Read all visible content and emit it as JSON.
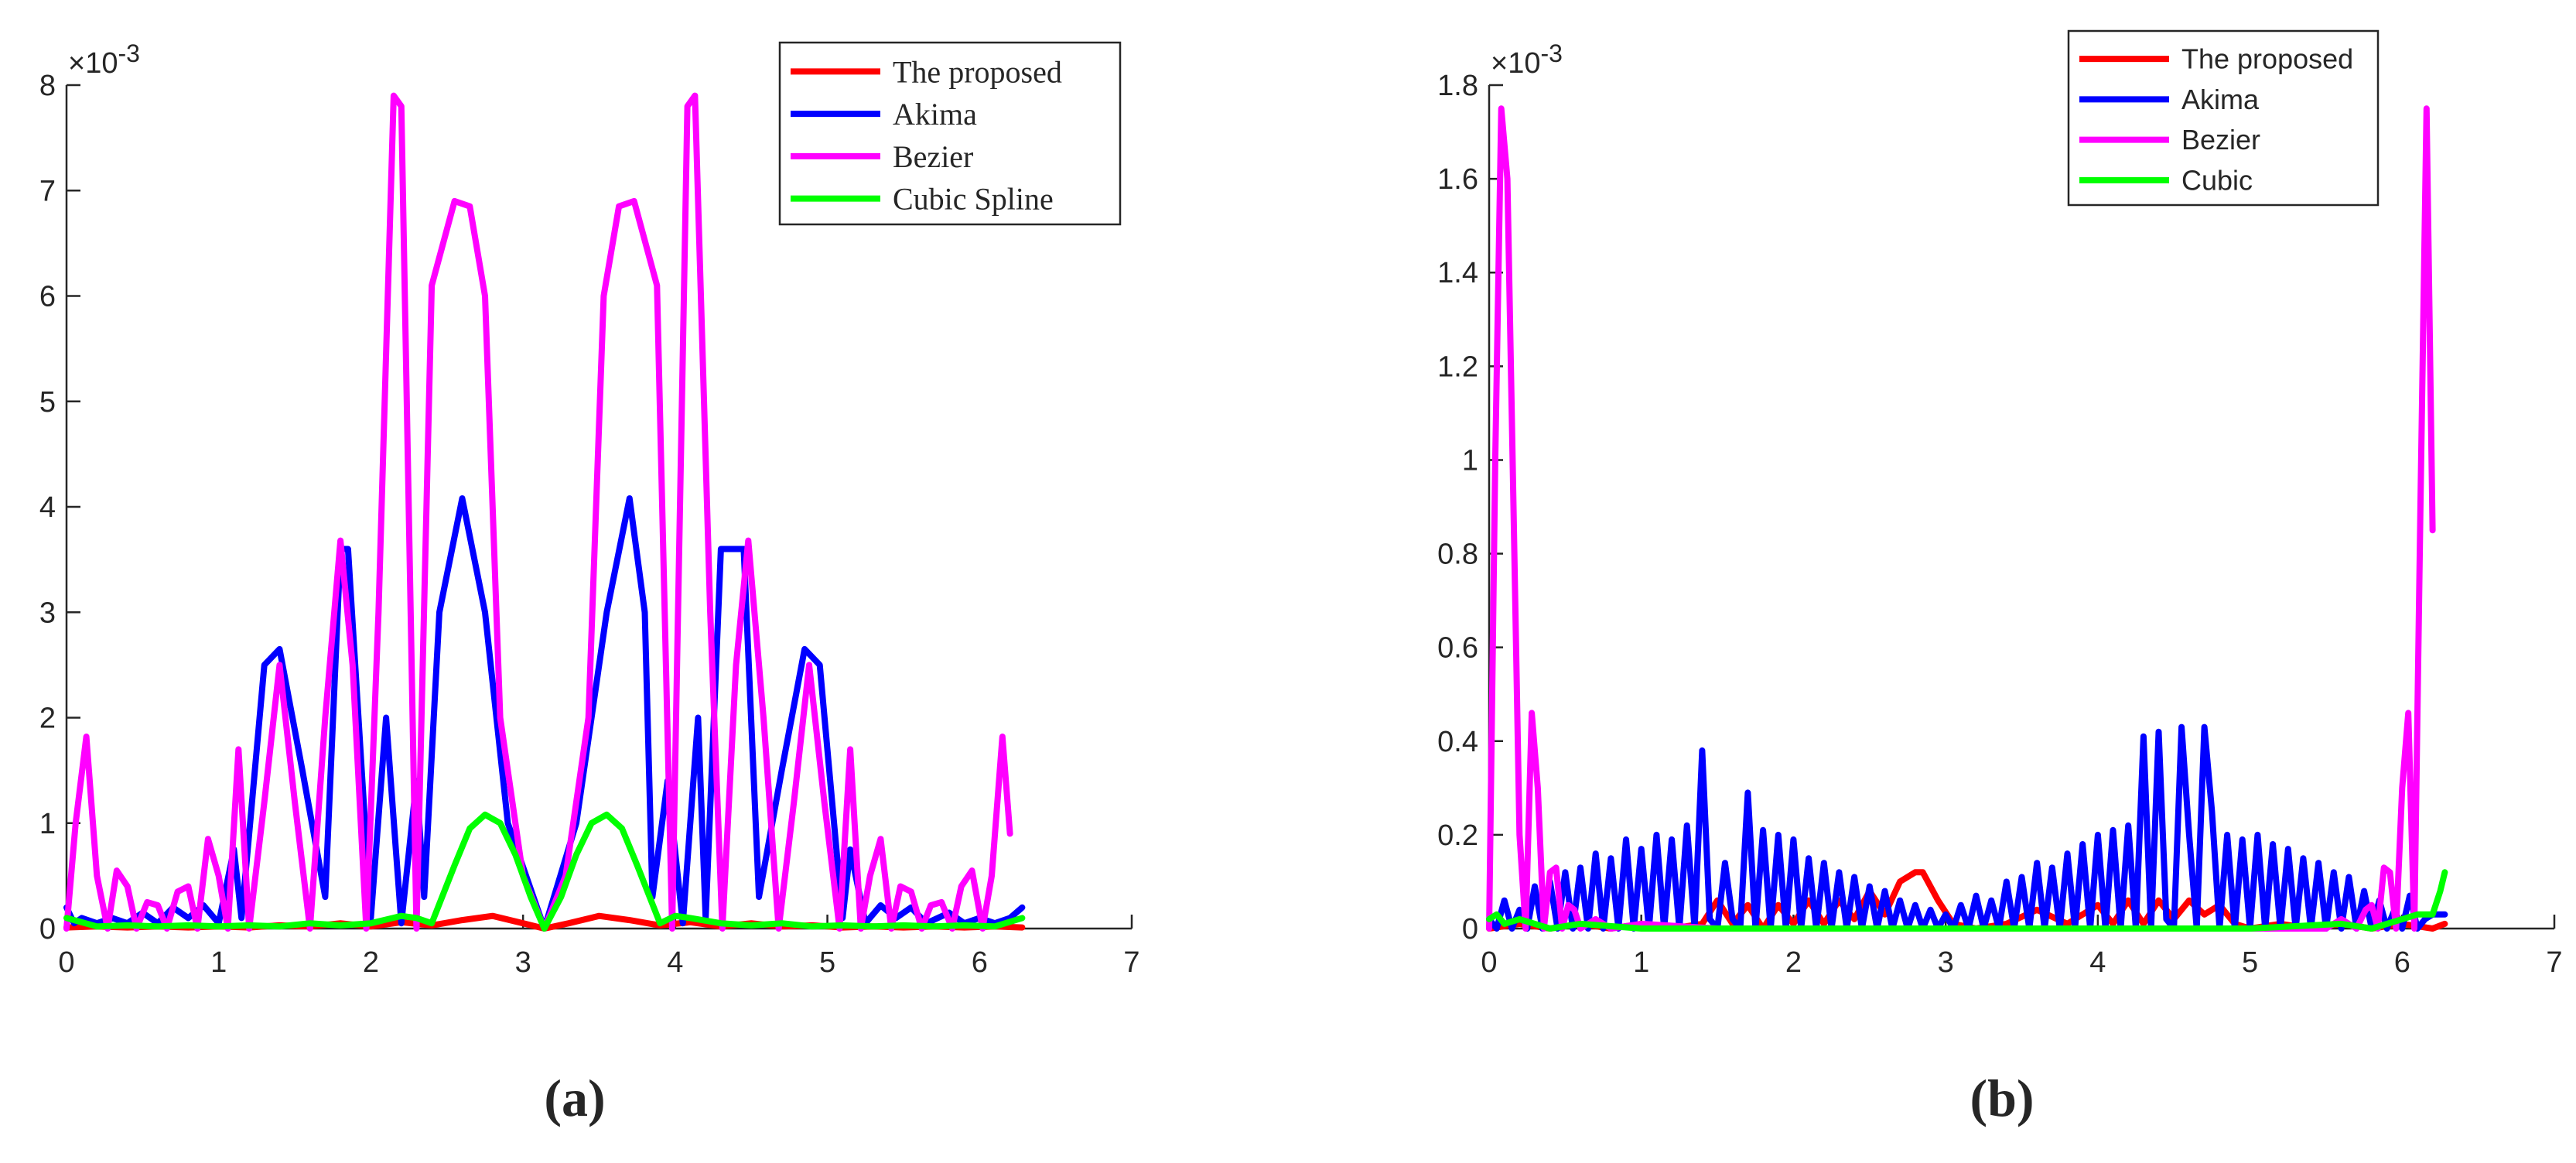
{
  "captions": [
    "(a)",
    "(b)"
  ],
  "colors": {
    "proposed": "#ff0000",
    "akima": "#0000ff",
    "bezier": "#ff00ff",
    "cubic": "#00ff00",
    "axis": "#262626"
  },
  "chart_data": [
    {
      "type": "line",
      "title": "",
      "xlabel": "",
      "ylabel": "",
      "exponent_label": "×10^-3",
      "xlim": [
        0,
        7
      ],
      "ylim": [
        0,
        8
      ],
      "x_ticks": [
        "0",
        "1",
        "2",
        "3",
        "4",
        "5",
        "6",
        "7"
      ],
      "y_ticks": [
        "0",
        "1",
        "2",
        "3",
        "4",
        "5",
        "6",
        "7",
        "8"
      ],
      "legend_position": "top-right",
      "series": [
        {
          "name": "The proposed",
          "x": [
            0.0,
            0.2,
            0.4,
            0.6,
            0.8,
            1.0,
            1.2,
            1.4,
            1.6,
            1.8,
            2.0,
            2.2,
            2.4,
            2.6,
            2.8,
            3.0,
            3.14,
            3.3,
            3.5,
            3.7,
            3.9,
            4.1,
            4.3,
            4.5,
            4.7,
            4.9,
            5.1,
            5.3,
            5.5,
            5.7,
            5.9,
            6.1,
            6.28
          ],
          "y": [
            0.01,
            0.02,
            0.01,
            0.02,
            0.01,
            0.02,
            0.01,
            0.03,
            0.02,
            0.05,
            0.02,
            0.06,
            0.03,
            0.08,
            0.12,
            0.05,
            0.0,
            0.05,
            0.12,
            0.08,
            0.03,
            0.06,
            0.02,
            0.05,
            0.02,
            0.03,
            0.01,
            0.02,
            0.01,
            0.02,
            0.01,
            0.02,
            0.01
          ]
        },
        {
          "name": "Akima",
          "x": [
            0.0,
            0.05,
            0.1,
            0.2,
            0.3,
            0.4,
            0.5,
            0.6,
            0.7,
            0.8,
            0.9,
            1.0,
            1.1,
            1.15,
            1.2,
            1.3,
            1.4,
            1.55,
            1.7,
            1.8,
            1.85,
            2.0,
            2.1,
            2.2,
            2.3,
            2.35,
            2.45,
            2.6,
            2.75,
            2.9,
            3.14,
            3.35,
            3.55,
            3.7,
            3.8,
            3.85,
            3.95,
            4.05,
            4.15,
            4.2,
            4.3,
            4.45,
            4.55,
            4.7,
            4.85,
            4.95,
            5.05,
            5.1,
            5.15,
            5.25,
            5.35,
            5.45,
            5.55,
            5.65,
            5.8,
            5.9,
            6.0,
            6.1,
            6.2,
            6.28
          ],
          "y": [
            0.2,
            0.05,
            0.1,
            0.05,
            0.1,
            0.05,
            0.15,
            0.05,
            0.2,
            0.1,
            0.22,
            0.05,
            0.75,
            0.1,
            0.9,
            2.5,
            2.65,
            1.5,
            0.3,
            3.6,
            3.6,
            0.1,
            2.0,
            0.05,
            1.4,
            0.3,
            3.0,
            4.08,
            3.0,
            1.0,
            0.0,
            1.0,
            3.0,
            4.08,
            3.0,
            0.3,
            1.4,
            0.05,
            2.0,
            0.1,
            3.6,
            3.6,
            0.3,
            1.5,
            2.65,
            2.5,
            0.9,
            0.1,
            0.75,
            0.05,
            0.22,
            0.1,
            0.2,
            0.05,
            0.15,
            0.05,
            0.1,
            0.05,
            0.1,
            0.2
          ]
        },
        {
          "name": "Bezier",
          "x": [
            0.0,
            0.06,
            0.13,
            0.2,
            0.27,
            0.33,
            0.4,
            0.46,
            0.53,
            0.6,
            0.66,
            0.73,
            0.8,
            0.86,
            0.93,
            1.0,
            1.06,
            1.13,
            1.2,
            1.3,
            1.4,
            1.5,
            1.6,
            1.7,
            1.8,
            1.88,
            1.97,
            2.05,
            2.15,
            2.2,
            2.3,
            2.4,
            2.55,
            2.65,
            2.75,
            2.85,
            3.0,
            3.14,
            3.28,
            3.43,
            3.53,
            3.63,
            3.73,
            3.88,
            3.98,
            4.08,
            4.13,
            4.23,
            4.31,
            4.4,
            4.48,
            4.58,
            4.68,
            4.78,
            4.88,
            4.98,
            5.08,
            5.15,
            5.22,
            5.28,
            5.35,
            5.42,
            5.48,
            5.55,
            5.62,
            5.68,
            5.75,
            5.82,
            5.88,
            5.95,
            6.02,
            6.08,
            6.15,
            6.2
          ],
          "y": [
            0.0,
            1.0,
            1.82,
            0.5,
            0.0,
            0.55,
            0.4,
            0.0,
            0.25,
            0.22,
            0.0,
            0.35,
            0.4,
            0.0,
            0.85,
            0.5,
            0.0,
            1.7,
            0.0,
            1.2,
            2.5,
            1.2,
            0.0,
            2.0,
            3.68,
            2.5,
            0.0,
            3.0,
            7.9,
            7.8,
            0.0,
            6.1,
            6.9,
            6.85,
            6.0,
            2.0,
            0.5,
            0.0,
            0.5,
            2.0,
            6.0,
            6.85,
            6.9,
            6.1,
            0.0,
            7.8,
            7.9,
            3.0,
            0.0,
            2.5,
            3.68,
            2.0,
            0.0,
            1.2,
            2.5,
            1.2,
            0.0,
            1.7,
            0.0,
            0.5,
            0.85,
            0.0,
            0.4,
            0.35,
            0.0,
            0.22,
            0.25,
            0.0,
            0.4,
            0.55,
            0.0,
            0.5,
            1.82,
            0.9
          ]
        },
        {
          "name": "Cubic Spline",
          "x": [
            0.0,
            0.2,
            0.4,
            0.6,
            0.8,
            1.0,
            1.2,
            1.4,
            1.6,
            1.8,
            2.0,
            2.2,
            2.3,
            2.4,
            2.55,
            2.65,
            2.75,
            2.85,
            2.95,
            3.05,
            3.14,
            3.25,
            3.35,
            3.45,
            3.55,
            3.65,
            3.75,
            3.9,
            4.0,
            4.1,
            4.3,
            4.5,
            4.7,
            4.9,
            5.1,
            5.3,
            5.5,
            5.7,
            5.9,
            6.1,
            6.28
          ],
          "y": [
            0.1,
            0.02,
            0.03,
            0.02,
            0.03,
            0.02,
            0.03,
            0.02,
            0.05,
            0.03,
            0.05,
            0.12,
            0.1,
            0.05,
            0.6,
            0.95,
            1.08,
            1.0,
            0.7,
            0.3,
            0.0,
            0.3,
            0.7,
            1.0,
            1.08,
            0.95,
            0.6,
            0.05,
            0.12,
            0.1,
            0.05,
            0.03,
            0.05,
            0.02,
            0.03,
            0.02,
            0.03,
            0.02,
            0.03,
            0.02,
            0.1
          ]
        }
      ]
    },
    {
      "type": "line",
      "title": "",
      "xlabel": "",
      "ylabel": "",
      "exponent_label": "×10^-3",
      "xlim": [
        0,
        7
      ],
      "ylim": [
        0,
        1.8
      ],
      "x_ticks": [
        "0",
        "1",
        "2",
        "3",
        "4",
        "5",
        "6",
        "7"
      ],
      "y_ticks": [
        "0",
        "0.2",
        "0.4",
        "0.6",
        "0.8",
        "1",
        "1.2",
        "1.4",
        "1.6",
        "1.8"
      ],
      "legend_position": "top-right",
      "series": [
        {
          "name": "The proposed",
          "x": [
            0.0,
            0.2,
            0.4,
            0.6,
            0.8,
            1.0,
            1.2,
            1.4,
            1.5,
            1.6,
            1.7,
            1.8,
            1.9,
            2.0,
            2.1,
            2.2,
            2.3,
            2.4,
            2.5,
            2.6,
            2.7,
            2.8,
            2.85,
            2.95,
            3.05,
            3.2,
            3.4,
            3.6,
            3.8,
            4.0,
            4.1,
            4.2,
            4.3,
            4.4,
            4.5,
            4.6,
            4.7,
            4.8,
            4.9,
            5.0,
            5.2,
            5.4,
            5.6,
            5.8,
            6.0,
            6.2,
            6.28
          ],
          "y": [
            0.0,
            0.01,
            0.0,
            0.01,
            0.0,
            0.01,
            0.0,
            0.01,
            0.06,
            0.01,
            0.05,
            0.0,
            0.05,
            0.01,
            0.06,
            0.01,
            0.06,
            0.02,
            0.08,
            0.03,
            0.1,
            0.12,
            0.12,
            0.06,
            0.01,
            0.0,
            0.01,
            0.04,
            0.01,
            0.05,
            0.01,
            0.06,
            0.01,
            0.06,
            0.02,
            0.06,
            0.03,
            0.05,
            0.01,
            0.0,
            0.01,
            0.0,
            0.01,
            0.0,
            0.01,
            0.0,
            0.01
          ]
        },
        {
          "name": "Akima",
          "x": [
            0.0,
            0.05,
            0.1,
            0.15,
            0.2,
            0.25,
            0.3,
            0.35,
            0.4,
            0.45,
            0.5,
            0.55,
            0.6,
            0.65,
            0.7,
            0.75,
            0.8,
            0.85,
            0.9,
            0.95,
            1.0,
            1.05,
            1.1,
            1.15,
            1.2,
            1.25,
            1.3,
            1.35,
            1.4,
            1.45,
            1.5,
            1.55,
            1.6,
            1.65,
            1.7,
            1.75,
            1.8,
            1.85,
            1.9,
            1.95,
            2.0,
            2.05,
            2.1,
            2.15,
            2.2,
            2.25,
            2.3,
            2.35,
            2.4,
            2.45,
            2.5,
            2.55,
            2.6,
            2.65,
            2.7,
            2.75,
            2.8,
            2.85,
            2.9,
            2.95,
            3.0,
            3.05,
            3.1,
            3.15,
            3.2,
            3.25,
            3.3,
            3.35,
            3.4,
            3.45,
            3.5,
            3.55,
            3.6,
            3.65,
            3.7,
            3.75,
            3.8,
            3.85,
            3.9,
            3.95,
            4.0,
            4.05,
            4.1,
            4.15,
            4.2,
            4.25,
            4.3,
            4.35,
            4.4,
            4.45,
            4.5,
            4.55,
            4.6,
            4.65,
            4.7,
            4.75,
            4.8,
            4.85,
            4.9,
            4.95,
            5.0,
            5.05,
            5.1,
            5.15,
            5.2,
            5.25,
            5.3,
            5.35,
            5.4,
            5.45,
            5.5,
            5.55,
            5.6,
            5.65,
            5.7,
            5.75,
            5.8,
            5.85,
            5.9,
            5.95,
            6.0,
            6.05,
            6.1,
            6.15,
            6.2,
            6.28
          ],
          "y": [
            0.02,
            0.0,
            0.06,
            0.0,
            0.04,
            0.0,
            0.09,
            0.0,
            0.1,
            0.0,
            0.12,
            0.0,
            0.13,
            0.0,
            0.16,
            0.0,
            0.15,
            0.0,
            0.19,
            0.0,
            0.17,
            0.0,
            0.2,
            0.0,
            0.19,
            0.0,
            0.22,
            0.0,
            0.38,
            0.02,
            0.0,
            0.14,
            0.02,
            0.0,
            0.29,
            0.0,
            0.21,
            0.0,
            0.2,
            0.0,
            0.19,
            0.0,
            0.15,
            0.0,
            0.14,
            0.0,
            0.12,
            0.0,
            0.11,
            0.0,
            0.09,
            0.0,
            0.08,
            0.0,
            0.06,
            0.0,
            0.05,
            0.0,
            0.04,
            0.0,
            0.03,
            0.0,
            0.05,
            0.0,
            0.07,
            0.0,
            0.06,
            0.0,
            0.1,
            0.0,
            0.11,
            0.0,
            0.14,
            0.0,
            0.13,
            0.0,
            0.16,
            0.0,
            0.18,
            0.0,
            0.2,
            0.0,
            0.21,
            0.0,
            0.22,
            0.0,
            0.41,
            0.0,
            0.42,
            0.02,
            0.0,
            0.43,
            0.2,
            0.0,
            0.43,
            0.25,
            0.0,
            0.2,
            0.0,
            0.19,
            0.0,
            0.2,
            0.0,
            0.18,
            0.0,
            0.17,
            0.0,
            0.15,
            0.0,
            0.14,
            0.0,
            0.12,
            0.0,
            0.11,
            0.0,
            0.08,
            0.0,
            0.06,
            0.0,
            0.04,
            0.0,
            0.07,
            0.0,
            0.02,
            0.03,
            0.03
          ]
        },
        {
          "name": "Bezier",
          "x": [
            0.0,
            0.04,
            0.08,
            0.12,
            0.16,
            0.2,
            0.24,
            0.28,
            0.32,
            0.36,
            0.4,
            0.44,
            0.48,
            0.52,
            0.56,
            0.6,
            0.7,
            0.8,
            1.0,
            1.5,
            2.0,
            3.0,
            4.0,
            4.5,
            5.0,
            5.5,
            5.6,
            5.7,
            5.76,
            5.8,
            5.84,
            5.88,
            5.92,
            5.96,
            6.0,
            6.04,
            6.08,
            6.12,
            6.16,
            6.2
          ],
          "y": [
            0.0,
            1.0,
            1.75,
            1.6,
            0.9,
            0.2,
            0.0,
            0.46,
            0.3,
            0.0,
            0.12,
            0.13,
            0.0,
            0.05,
            0.04,
            0.0,
            0.02,
            0.0,
            0.01,
            0.0,
            0.0,
            0.0,
            0.0,
            0.0,
            0.0,
            0.0,
            0.02,
            0.0,
            0.04,
            0.05,
            0.0,
            0.13,
            0.12,
            0.0,
            0.3,
            0.46,
            0.0,
            0.9,
            1.75,
            0.85
          ]
        },
        {
          "name": "Cubic",
          "x": [
            0.0,
            0.05,
            0.1,
            0.2,
            0.4,
            0.6,
            1.0,
            2.0,
            3.0,
            4.0,
            5.0,
            5.6,
            5.8,
            6.0,
            6.1,
            6.2,
            6.25,
            6.28
          ],
          "y": [
            0.02,
            0.03,
            0.01,
            0.02,
            0.0,
            0.01,
            0.0,
            0.0,
            0.0,
            0.0,
            0.0,
            0.01,
            0.0,
            0.02,
            0.03,
            0.03,
            0.08,
            0.12
          ]
        }
      ]
    }
  ]
}
